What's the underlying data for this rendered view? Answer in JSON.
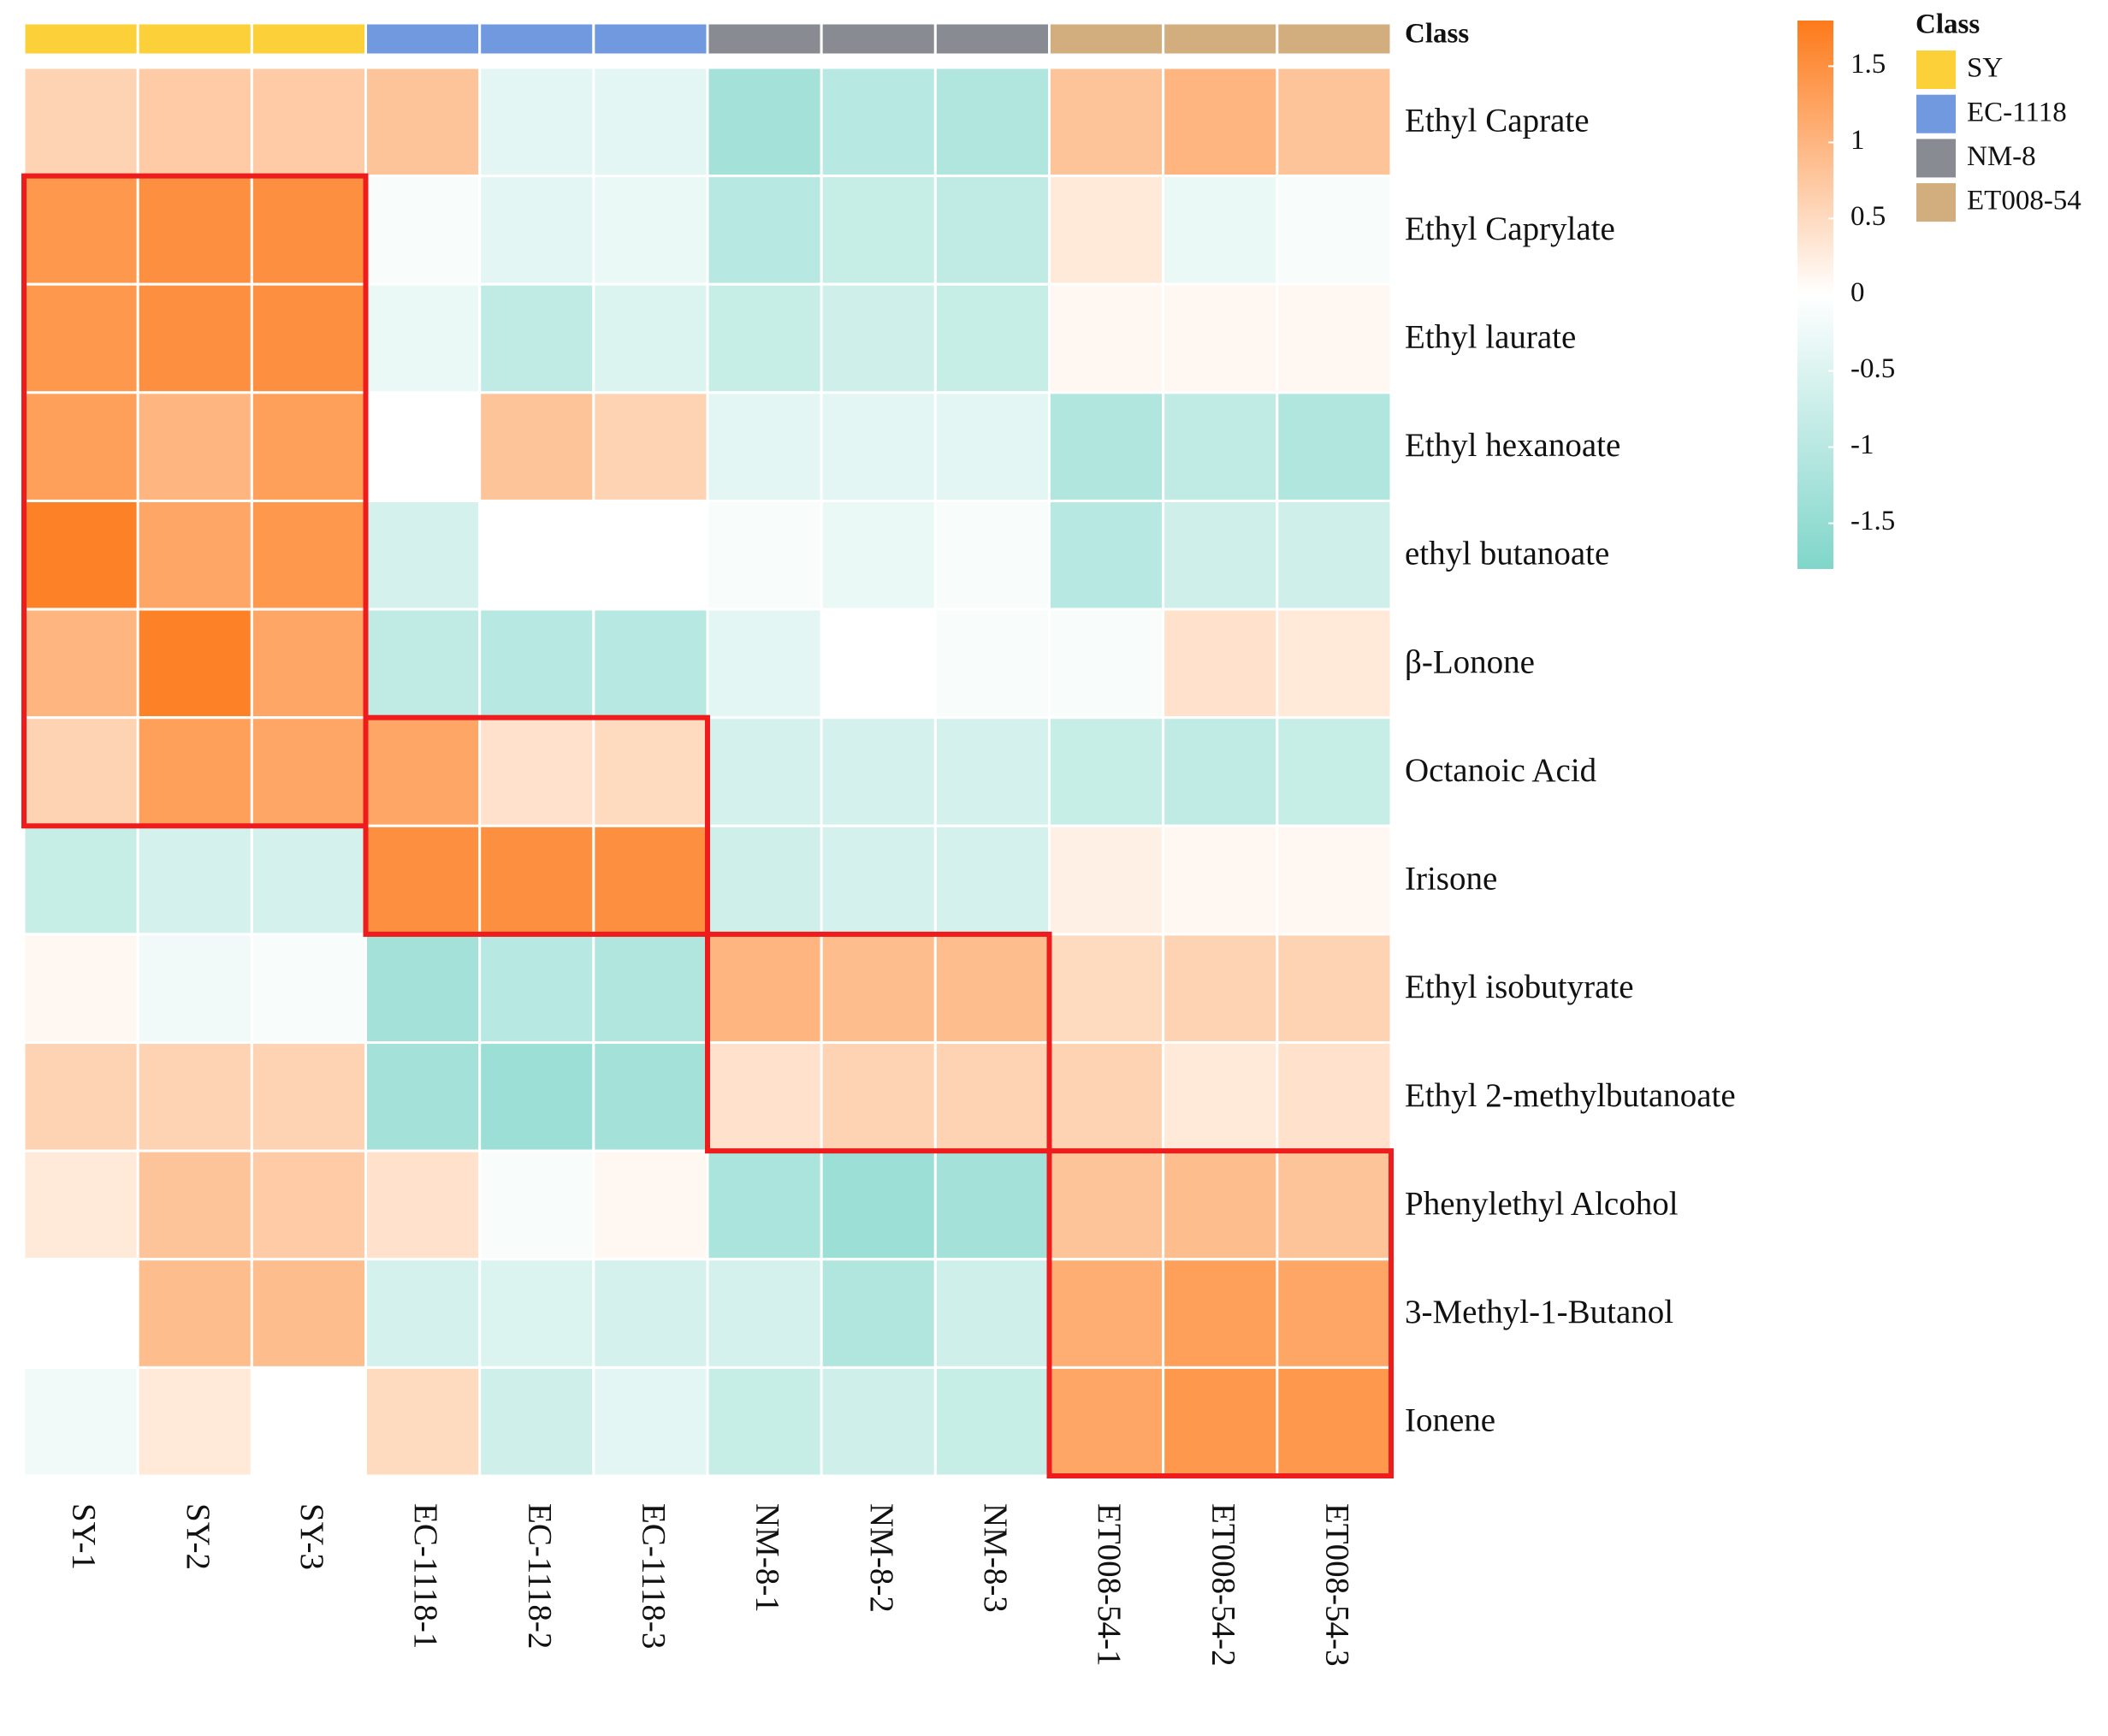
{
  "chart_data": {
    "type": "heatmap",
    "columns": [
      "SY-1",
      "SY-2",
      "SY-3",
      "EC-1118-1",
      "EC-1118-2",
      "EC-1118-3",
      "NM-8-1",
      "NM-8-2",
      "NM-8-3",
      "ET008-54-1",
      "ET008-54-2",
      "ET008-54-3"
    ],
    "rows": [
      "Ethyl Caprate",
      "Ethyl Caprylate",
      "Ethyl laurate",
      "Ethyl hexanoate",
      "ethyl butanoate",
      "β-Lonone",
      "Octanoic Acid",
      "Irisone",
      "Ethyl isobutyrate",
      "Ethyl 2-methylbutanoate",
      "Phenylethyl Alcohol",
      "3-Methyl-1-Butanol",
      "Ionene"
    ],
    "values": [
      [
        0.6,
        0.7,
        0.7,
        0.8,
        -0.4,
        -0.4,
        -1.3,
        -1.0,
        -1.1,
        0.8,
        1.0,
        0.8
      ],
      [
        1.4,
        1.5,
        1.5,
        -0.1,
        -0.4,
        -0.3,
        -1.0,
        -0.8,
        -0.9,
        0.3,
        -0.3,
        -0.1
      ],
      [
        1.4,
        1.5,
        1.5,
        -0.3,
        -0.9,
        -0.5,
        -0.8,
        -0.7,
        -0.8,
        0.1,
        0.1,
        0.1
      ],
      [
        1.3,
        1.0,
        1.3,
        0.0,
        0.8,
        0.6,
        -0.4,
        -0.4,
        -0.4,
        -1.1,
        -0.9,
        -1.1
      ],
      [
        1.7,
        1.2,
        1.4,
        -0.6,
        0.0,
        0.0,
        -0.1,
        -0.3,
        -0.1,
        -1.0,
        -0.7,
        -0.7
      ],
      [
        1.0,
        1.7,
        1.2,
        -0.9,
        -1.0,
        -1.0,
        -0.4,
        0.0,
        -0.1,
        -0.1,
        0.4,
        0.3
      ],
      [
        0.6,
        1.3,
        1.2,
        1.2,
        0.4,
        0.5,
        -0.6,
        -0.6,
        -0.6,
        -0.8,
        -0.9,
        -0.8
      ],
      [
        -0.8,
        -0.6,
        -0.6,
        1.5,
        1.5,
        1.5,
        -0.7,
        -0.6,
        -0.6,
        0.2,
        0.1,
        0.1
      ],
      [
        0.1,
        -0.2,
        -0.1,
        -1.3,
        -1.0,
        -1.1,
        1.0,
        0.9,
        0.9,
        0.5,
        0.6,
        0.6
      ],
      [
        0.6,
        0.6,
        0.6,
        -1.3,
        -1.4,
        -1.3,
        0.4,
        0.6,
        0.6,
        0.6,
        0.3,
        0.4
      ],
      [
        0.3,
        0.8,
        0.7,
        0.4,
        -0.1,
        0.1,
        -1.2,
        -1.4,
        -1.3,
        0.8,
        0.9,
        0.8
      ],
      [
        0.0,
        0.9,
        0.9,
        -0.6,
        -0.5,
        -0.6,
        -0.6,
        -1.1,
        -0.7,
        1.1,
        1.3,
        1.2
      ],
      [
        -0.2,
        0.3,
        0.0,
        0.5,
        -0.7,
        -0.4,
        -0.8,
        -0.7,
        -0.8,
        1.2,
        1.4,
        1.4
      ]
    ],
    "colors": {
      "low": "#80d6ca",
      "mid": "#ffffff",
      "high": "#fd7a1a"
    },
    "clim": [
      -1.8,
      1.8
    ],
    "cticks": [
      1.5,
      1,
      0.5,
      0,
      -0.5,
      -1,
      -1.5
    ],
    "class_annotation": {
      "title": "Class",
      "groups": [
        {
          "name": "SY",
          "color": "#fbd038"
        },
        {
          "name": "EC-1118",
          "color": "#7099e0"
        },
        {
          "name": "NM-8",
          "color": "#888b92"
        },
        {
          "name": "ET008-54",
          "color": "#d2ad7e"
        }
      ],
      "column_class": [
        "SY",
        "SY",
        "SY",
        "EC-1118",
        "EC-1118",
        "EC-1118",
        "NM-8",
        "NM-8",
        "NM-8",
        "ET008-54",
        "ET008-54",
        "ET008-54"
      ]
    }
  }
}
